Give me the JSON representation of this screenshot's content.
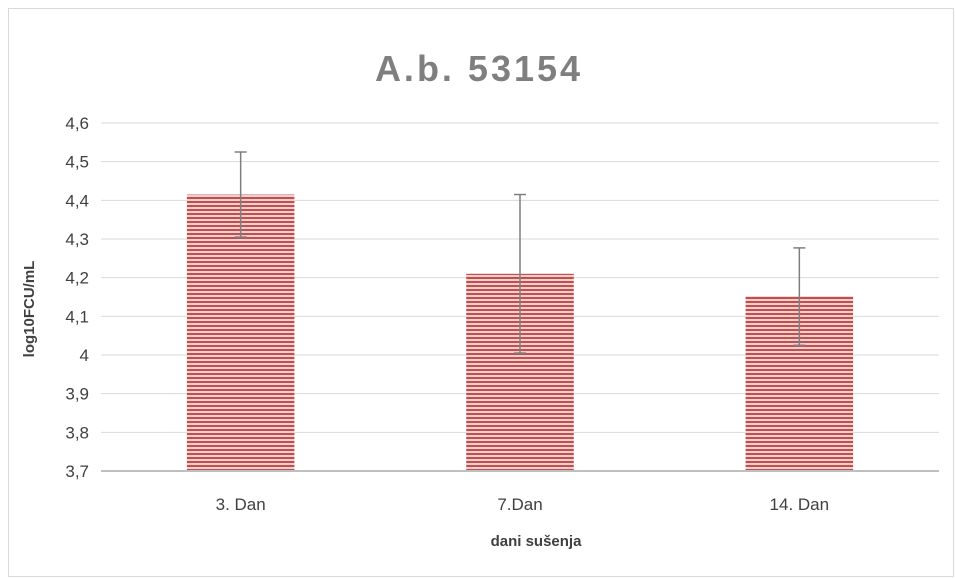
{
  "chart_data": {
    "type": "bar",
    "title": "A.b. 53154",
    "xlabel": "dani sušenja",
    "ylabel": "log10FCU/mL",
    "categories": [
      "3. Dan",
      "7.Dan",
      "14. Dan"
    ],
    "values": [
      4.415,
      4.21,
      4.152
    ],
    "error_low": [
      4.305,
      4.005,
      4.025
    ],
    "error_high": [
      4.525,
      4.415,
      4.277
    ],
    "ylim": [
      3.7,
      4.6
    ],
    "yticks": [
      3.7,
      3.8,
      3.9,
      4.0,
      4.1,
      4.2,
      4.3,
      4.4,
      4.5,
      4.6
    ],
    "ytick_labels": [
      "3,7",
      "3,8",
      "3,9",
      "4",
      "4,1",
      "4,2",
      "4,3",
      "4,4",
      "4,5",
      "4,6"
    ],
    "grid": true,
    "legend": "none",
    "colors": {
      "bar_fill": "#f2d0d0",
      "bar_stripe": "#c0504d",
      "grid": "#d9d9d9",
      "axis": "#bfbfbf",
      "errorbar": "#7f7f7f",
      "title": "#7f7f7f",
      "text": "#404040"
    }
  }
}
